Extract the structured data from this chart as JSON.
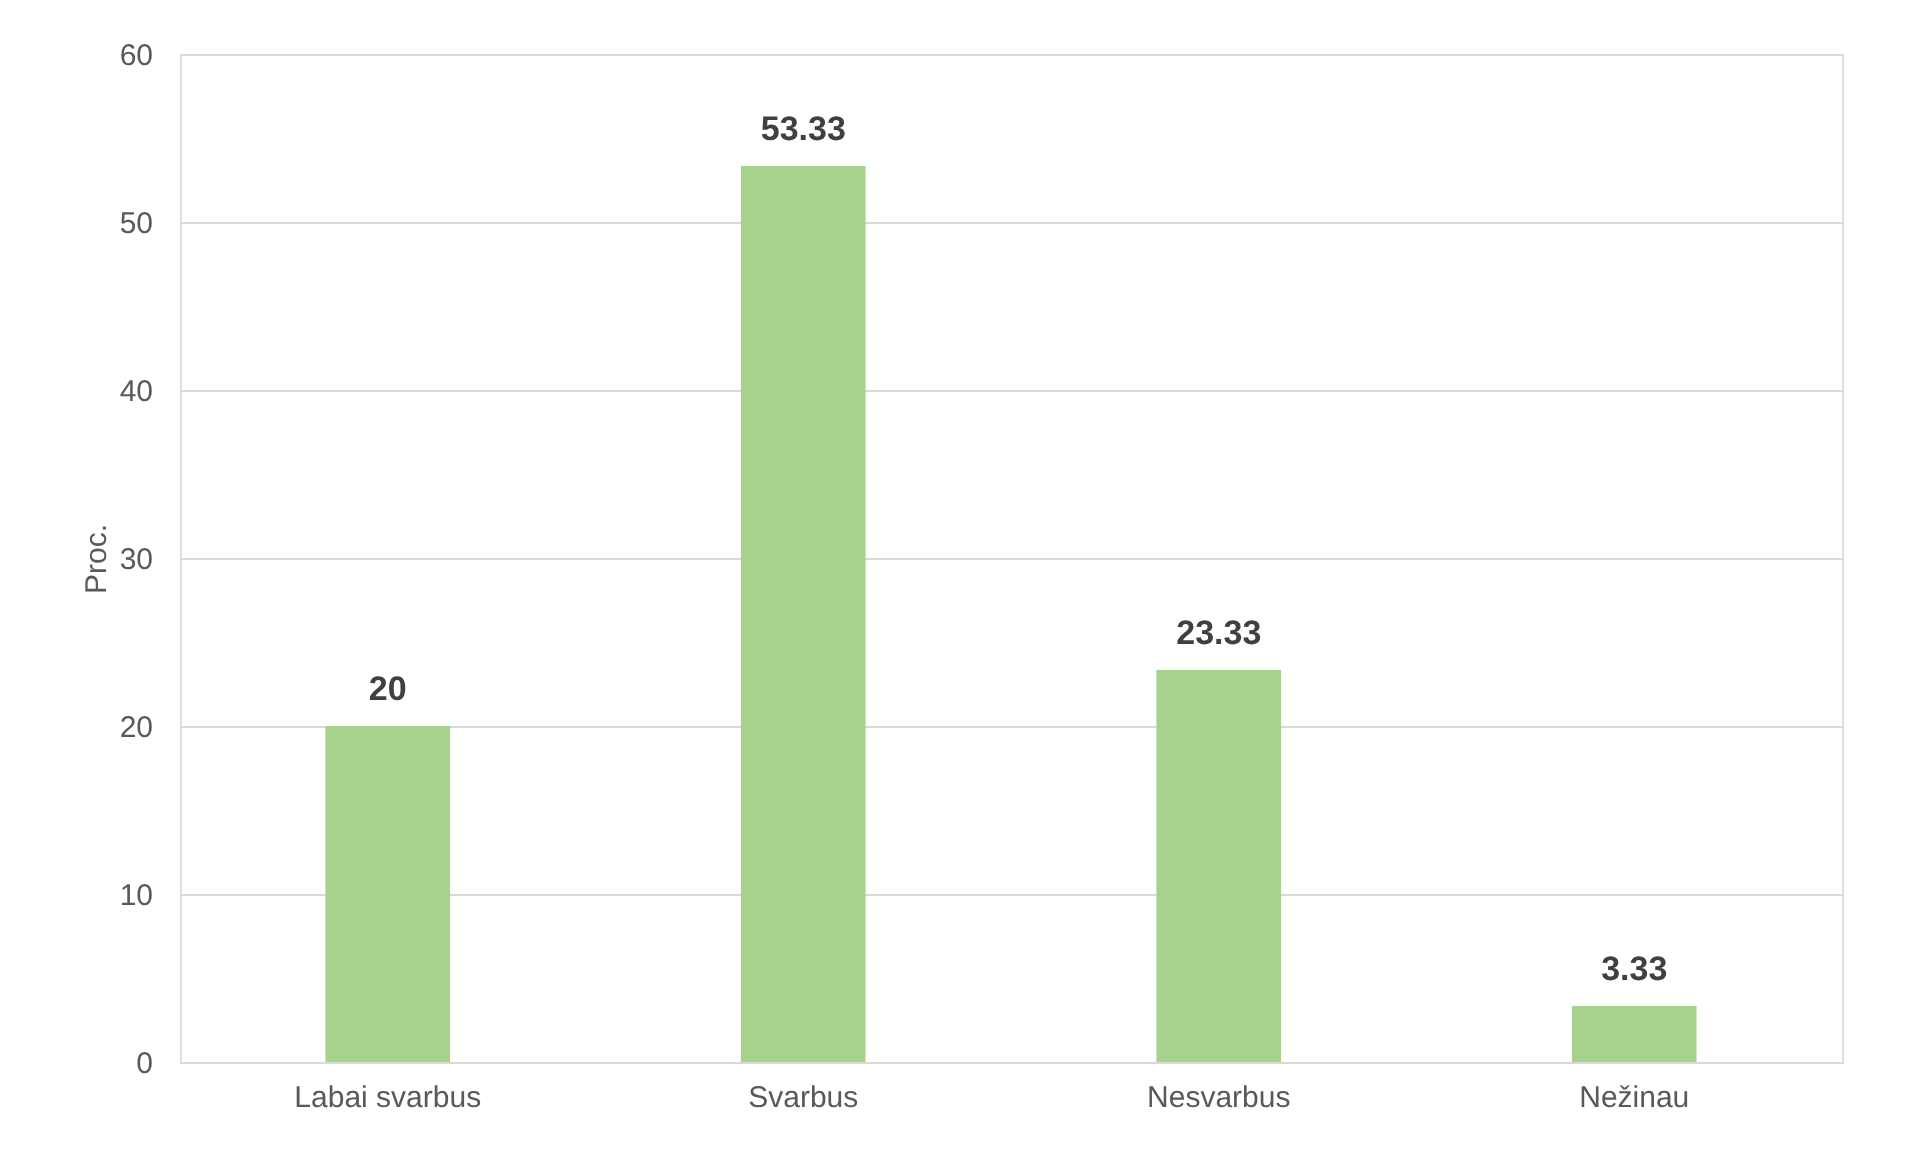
{
  "chart_data": {
    "type": "bar",
    "ylabel": "Proc.",
    "categories": [
      "Labai svarbus",
      "Svarbus",
      "Nesvarbus",
      "Nežinau"
    ],
    "values": [
      20,
      53.33,
      23.33,
      3.33
    ],
    "color": "#a9d18e",
    "ylim": [
      0,
      60
    ],
    "yticks": [
      0,
      10,
      20,
      30,
      40,
      50,
      60
    ],
    "grid": "y",
    "data_labels": true
  }
}
